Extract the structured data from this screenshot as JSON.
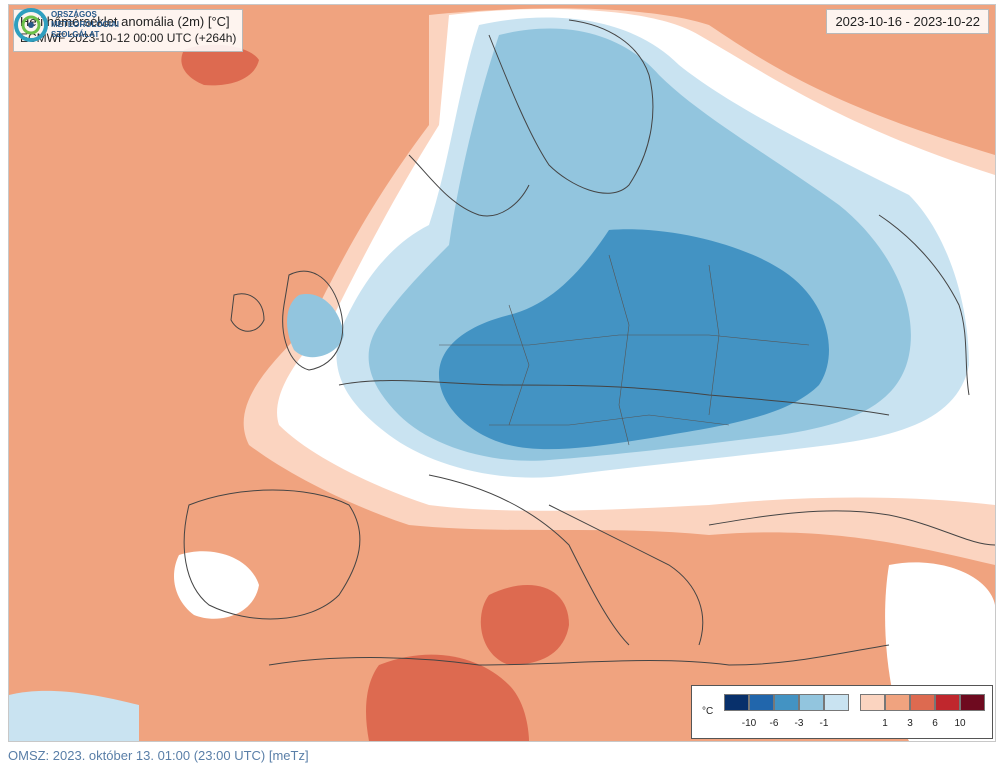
{
  "map": {
    "title": "Heti hőmérséklet anomália (2m) [°C]",
    "run": "ECMWF 2023-10-12 00:00 UTC (+264h)",
    "period": "2023-10-16 - 2023-10-22"
  },
  "legend": {
    "unit": "°C",
    "colors": {
      "neg10": "#08306b",
      "neg6": "#2166ac",
      "neg3": "#4393c3",
      "neg1": "#92c5de",
      "neg0": "#c9e3f1",
      "pos0": "#fbd4c0",
      "pos1": "#f0a37f",
      "pos3": "#dd6a50",
      "pos6": "#c0272d",
      "pos10": "#6e0a1f"
    },
    "labels": [
      "-10",
      "-6",
      "-3",
      "-1",
      "1",
      "3",
      "6",
      "10"
    ]
  },
  "logo": {
    "line1": "ORSZÁGOS",
    "line2": "METEOROLÓGIAI",
    "line3": "SZOLGÁLAT"
  },
  "footer": "OMSZ: 2023. október 13. 01:00 (23:00  UTC)  [meTz]"
}
